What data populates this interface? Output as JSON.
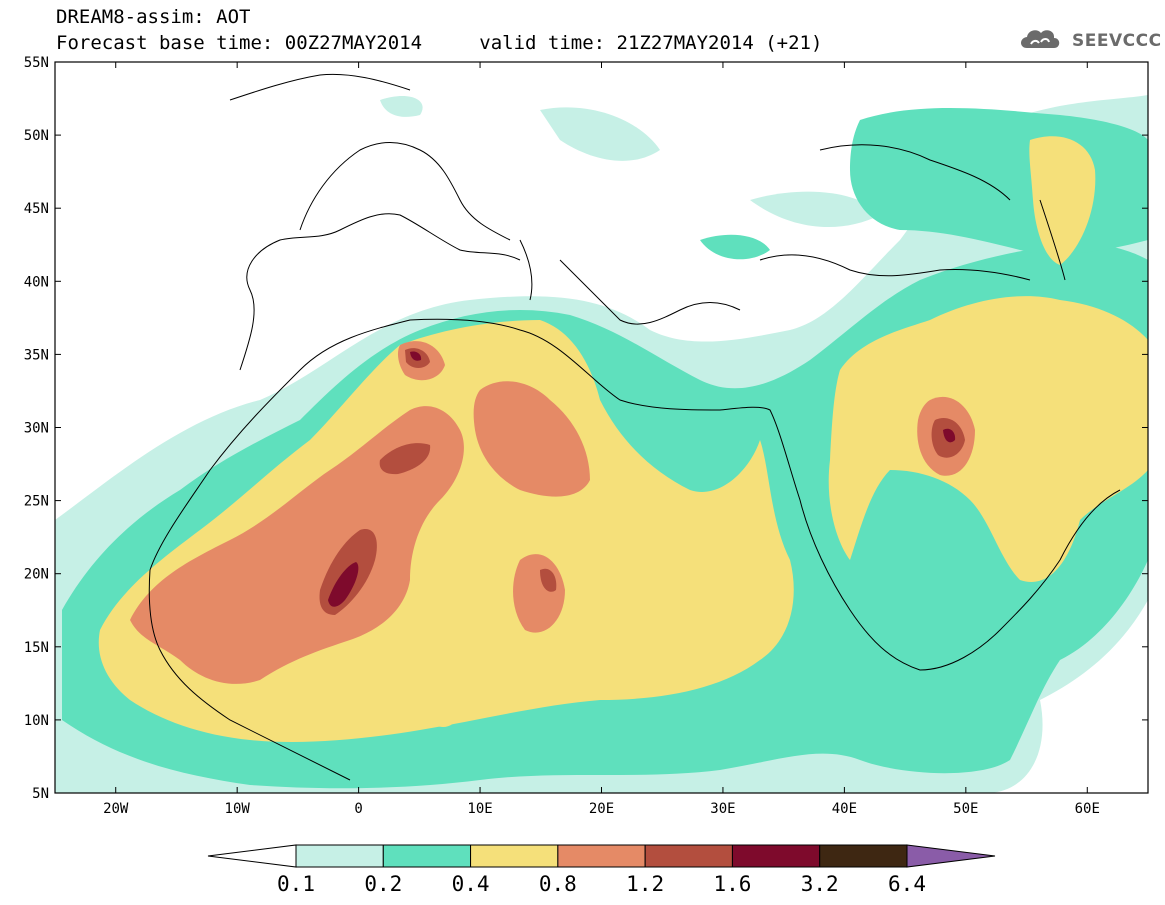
{
  "header": {
    "title": "DREAM8-assim: AOT",
    "base_time": "Forecast base time: 00Z27MAY2014",
    "valid_time": "valid time: 21Z27MAY2014 (+21)"
  },
  "logo": {
    "text": "SEEVCCC",
    "icon": "cloud-logo-icon",
    "color": "#6b6b6b"
  },
  "map": {
    "lon_range": [
      -25,
      65
    ],
    "lat_range": [
      5,
      55
    ],
    "lat_labels": [
      "55N",
      "50N",
      "45N",
      "40N",
      "35N",
      "30N",
      "25N",
      "20N",
      "15N",
      "10N",
      "5N"
    ],
    "lon_labels": [
      "20W",
      "10W",
      "0",
      "10E",
      "20E",
      "30E",
      "40E",
      "50E",
      "60E"
    ],
    "background": "#ffffff",
    "coastline_color": "#000000"
  },
  "legend": {
    "thresholds": [
      "0.1",
      "0.2",
      "0.4",
      "0.8",
      "1.2",
      "1.6",
      "3.2",
      "6.4"
    ],
    "colors": [
      "#ffffff",
      "#c6f0e6",
      "#5fe0bd",
      "#f5e07a",
      "#e58a66",
      "#b34e3e",
      "#7e0a2c",
      "#3e2712",
      "#8a5ca8"
    ]
  }
}
